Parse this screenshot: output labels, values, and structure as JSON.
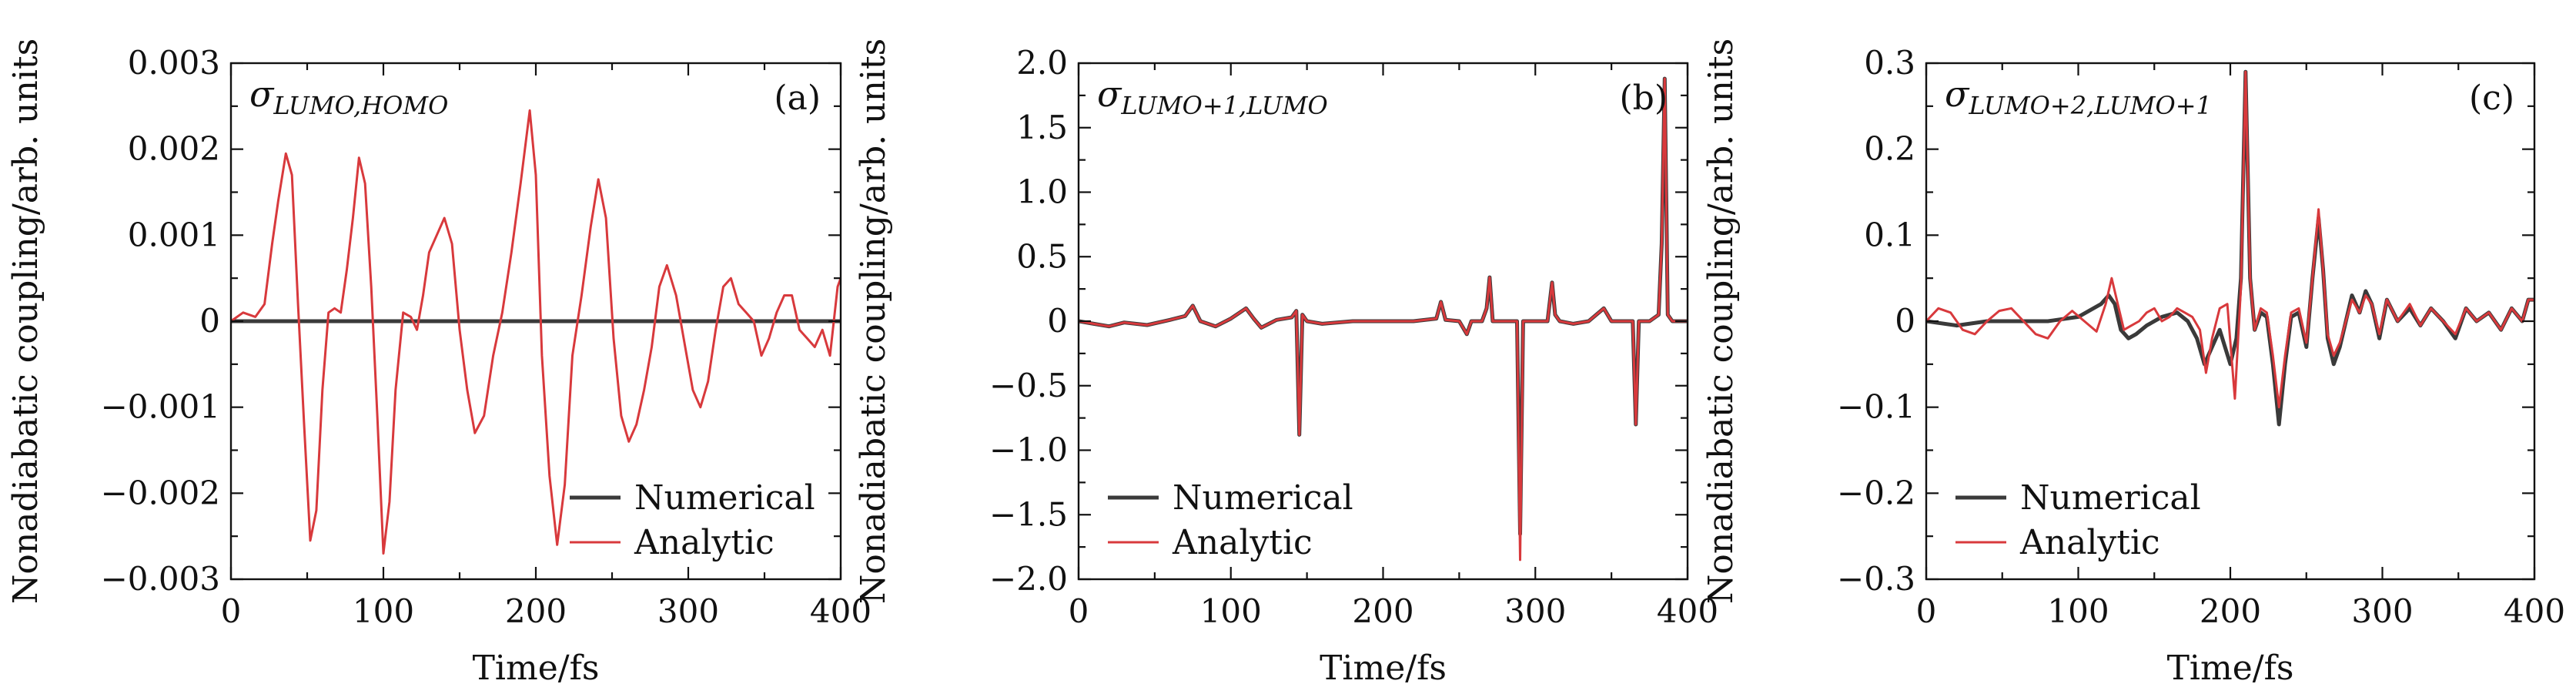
{
  "colors": {
    "numerical": "#3a3a3a",
    "analytic": "#d8393c",
    "axis": "#111111"
  },
  "chart_data": [
    {
      "type": "line",
      "panel_tag": "(a)",
      "label_main": "σ",
      "label_sub": "LUMO,HOMO",
      "xlabel": "Time/fs",
      "ylabel": "Nonadiabatic coupling/arb. units",
      "xlim": [
        0,
        400
      ],
      "ylim": [
        -0.003,
        0.003
      ],
      "x_ticks": [
        0,
        100,
        200,
        300,
        400
      ],
      "x_tick_labels": [
        "0",
        "100",
        "200",
        "300",
        "400"
      ],
      "y_ticks": [
        -0.003,
        -0.002,
        -0.001,
        0,
        0.001,
        0.002,
        0.003
      ],
      "y_tick_labels": [
        "−0.003",
        "−0.002",
        "−0.001",
        "0",
        "0.001",
        "0.002",
        "0.003"
      ],
      "legend": [
        "Numerical",
        "Analytic"
      ],
      "legend_position": "bottom-right",
      "series": [
        {
          "name": "Numerical",
          "x": [
            0,
            400
          ],
          "y": [
            0,
            0
          ]
        },
        {
          "name": "Analytic",
          "x": [
            0,
            8,
            16,
            22,
            27,
            31,
            36,
            40,
            44,
            48,
            52,
            56,
            60,
            64,
            68,
            72,
            76,
            80,
            84,
            88,
            92,
            96,
            100,
            104,
            108,
            113,
            118,
            122,
            126,
            130,
            135,
            140,
            145,
            150,
            155,
            160,
            166,
            172,
            178,
            184,
            190,
            196,
            200,
            204,
            209,
            214,
            219,
            224,
            230,
            236,
            241,
            246,
            251,
            256,
            261,
            266,
            271,
            276,
            281,
            286,
            292,
            298,
            303,
            308,
            313,
            318,
            323,
            328,
            333,
            338,
            343,
            348,
            353,
            358,
            363,
            368,
            373,
            378,
            383,
            388,
            393,
            398,
            400
          ],
          "y": [
            0,
            0.0001,
            5e-05,
            0.0002,
            0.0009,
            0.0014,
            0.00195,
            0.0017,
            0.0002,
            -0.0012,
            -0.00255,
            -0.0022,
            -0.0008,
            0.0001,
            0.00015,
            0.0001,
            0.0006,
            0.0012,
            0.0019,
            0.0016,
            0.0004,
            -0.0011,
            -0.0027,
            -0.0021,
            -0.0008,
            0.0001,
            5e-05,
            -0.0001,
            0.0003,
            0.0008,
            0.001,
            0.0012,
            0.0009,
            -0.0001,
            -0.0008,
            -0.0013,
            -0.0011,
            -0.0004,
            0.0001,
            0.0008,
            0.0016,
            0.00245,
            0.0017,
            -0.0004,
            -0.0018,
            -0.0026,
            -0.0019,
            -0.0004,
            0.0003,
            0.0011,
            0.00165,
            0.0012,
            -0.0002,
            -0.0011,
            -0.0014,
            -0.0012,
            -0.0008,
            -0.0003,
            0.0004,
            0.00065,
            0.0003,
            -0.0003,
            -0.0008,
            -0.001,
            -0.0007,
            -0.0001,
            0.0004,
            0.0005,
            0.0002,
            0.0001,
            0.0,
            -0.0004,
            -0.0002,
            0.0001,
            0.0003,
            0.0003,
            -0.0001,
            -0.0002,
            -0.0003,
            -0.0001,
            -0.0004,
            0.0004,
            0.0005
          ]
        }
      ]
    },
    {
      "type": "line",
      "panel_tag": "(b)",
      "label_main": "σ",
      "label_sub": "LUMO+1,LUMO",
      "xlabel": "Time/fs",
      "ylabel": "Nonadiabatic coupling/arb. units",
      "xlim": [
        0,
        400
      ],
      "ylim": [
        -2.0,
        2.0
      ],
      "x_ticks": [
        0,
        100,
        200,
        300,
        400
      ],
      "x_tick_labels": [
        "0",
        "100",
        "200",
        "300",
        "400"
      ],
      "y_ticks": [
        -2.0,
        -1.5,
        -1.0,
        -0.5,
        0,
        0.5,
        1.0,
        1.5,
        2.0
      ],
      "y_tick_labels": [
        "−2.0",
        "−1.5",
        "−1.0",
        "−0.5",
        "0",
        "0.5",
        "1.0",
        "1.5",
        "2.0"
      ],
      "legend": [
        "Numerical",
        "Analytic"
      ],
      "legend_position": "bottom-left",
      "series": [
        {
          "name": "Numerical",
          "x": [
            0,
            10,
            20,
            30,
            45,
            60,
            70,
            75,
            80,
            90,
            100,
            110,
            115,
            120,
            130,
            140,
            143,
            145,
            147,
            150,
            160,
            180,
            200,
            220,
            235,
            238,
            241,
            250,
            255,
            258,
            265,
            268,
            270,
            272,
            280,
            288,
            290,
            292,
            294,
            300,
            308,
            311,
            313,
            316,
            325,
            335,
            345,
            350,
            360,
            364,
            366,
            368,
            375,
            381,
            383,
            385,
            387,
            390,
            400
          ],
          "y": [
            0,
            -0.02,
            -0.04,
            -0.01,
            -0.03,
            0.01,
            0.04,
            0.12,
            0.0,
            -0.04,
            0.02,
            0.1,
            0.02,
            -0.05,
            0.01,
            0.03,
            0.08,
            -0.88,
            0.05,
            0.0,
            -0.02,
            0.0,
            0.0,
            0.0,
            0.02,
            0.15,
            0.01,
            0.0,
            -0.1,
            0.0,
            0.0,
            0.1,
            0.34,
            0.0,
            0.0,
            0.0,
            -1.65,
            0.0,
            0.0,
            0.0,
            0.0,
            0.3,
            0.05,
            0.0,
            -0.02,
            0.0,
            0.1,
            0.0,
            0.0,
            0.0,
            -0.8,
            0.0,
            0.0,
            0.05,
            0.6,
            1.88,
            0.05,
            0.0,
            0.0
          ]
        },
        {
          "name": "Analytic",
          "x": [
            0,
            10,
            20,
            30,
            45,
            60,
            70,
            75,
            80,
            90,
            100,
            110,
            115,
            120,
            130,
            140,
            143,
            145,
            147,
            150,
            160,
            180,
            200,
            220,
            235,
            238,
            241,
            250,
            255,
            258,
            265,
            268,
            270,
            272,
            280,
            288,
            290,
            292,
            294,
            300,
            308,
            311,
            313,
            316,
            325,
            335,
            345,
            350,
            360,
            364,
            366,
            368,
            375,
            381,
            383,
            385,
            387,
            390,
            400
          ],
          "y": [
            0,
            -0.02,
            -0.04,
            -0.01,
            -0.03,
            0.01,
            0.04,
            0.12,
            0.0,
            -0.04,
            0.02,
            0.1,
            0.02,
            -0.05,
            0.01,
            0.03,
            0.08,
            -0.88,
            0.05,
            0.0,
            -0.02,
            0.0,
            0.0,
            0.0,
            0.02,
            0.15,
            0.01,
            0.0,
            -0.1,
            0.0,
            0.0,
            0.1,
            0.34,
            0.0,
            0.0,
            0.0,
            -1.85,
            0.0,
            0.0,
            0.0,
            0.0,
            0.3,
            0.05,
            0.0,
            -0.02,
            0.0,
            0.1,
            0.0,
            0.0,
            0.0,
            -0.8,
            0.0,
            0.0,
            0.05,
            0.6,
            1.88,
            0.05,
            0.0,
            0.0
          ]
        }
      ]
    },
    {
      "type": "line",
      "panel_tag": "(c)",
      "label_main": "σ",
      "label_sub": "LUMO+2,LUMO+1",
      "xlabel": "Time/fs",
      "ylabel": "Nonadiabatic coupling/arb. units",
      "xlim": [
        0,
        400
      ],
      "ylim": [
        -0.3,
        0.3
      ],
      "x_ticks": [
        0,
        100,
        200,
        300,
        400
      ],
      "x_tick_labels": [
        "0",
        "100",
        "200",
        "300",
        "400"
      ],
      "y_ticks": [
        -0.3,
        -0.2,
        -0.1,
        0,
        0.1,
        0.2,
        0.3
      ],
      "y_tick_labels": [
        "−0.3",
        "−0.2",
        "−0.1",
        "0",
        "0.1",
        "0.2",
        "0.3"
      ],
      "legend": [
        "Numerical",
        "Analytic"
      ],
      "legend_position": "bottom-left",
      "series": [
        {
          "name": "Numerical",
          "x": [
            0,
            20,
            40,
            60,
            80,
            100,
            115,
            120,
            124,
            128,
            133,
            138,
            145,
            155,
            165,
            172,
            178,
            183,
            188,
            193,
            200,
            204,
            207,
            210,
            213,
            216,
            220,
            224,
            228,
            232,
            236,
            240,
            245,
            250,
            254,
            258,
            261,
            264,
            268,
            272,
            276,
            280,
            285,
            289,
            293,
            298,
            303,
            310,
            318,
            325,
            332,
            340,
            348,
            355,
            362,
            370,
            378,
            385,
            392,
            396,
            400
          ],
          "y": [
            0,
            -0.005,
            0.0,
            0.0,
            0.0,
            0.005,
            0.02,
            0.03,
            0.02,
            -0.01,
            -0.02,
            -0.015,
            -0.005,
            0.005,
            0.01,
            0.0,
            -0.02,
            -0.05,
            -0.03,
            -0.01,
            -0.05,
            -0.02,
            0.05,
            0.29,
            0.05,
            -0.01,
            0.01,
            0.005,
            -0.05,
            -0.12,
            -0.05,
            0.005,
            0.01,
            -0.03,
            0.05,
            0.12,
            0.06,
            -0.02,
            -0.05,
            -0.03,
            0.0,
            0.03,
            0.01,
            0.035,
            0.02,
            -0.02,
            0.025,
            0.0,
            0.015,
            -0.005,
            0.015,
            0.0,
            -0.02,
            0.015,
            0.0,
            0.01,
            -0.01,
            0.015,
            0.0,
            0.025,
            0.025
          ]
        },
        {
          "name": "Analytic",
          "x": [
            0,
            8,
            16,
            24,
            32,
            40,
            48,
            56,
            64,
            72,
            80,
            88,
            96,
            104,
            112,
            118,
            122,
            126,
            130,
            135,
            140,
            145,
            150,
            155,
            160,
            165,
            170,
            175,
            180,
            184,
            188,
            193,
            198,
            203,
            207,
            210,
            213,
            216,
            220,
            224,
            228,
            232,
            236,
            240,
            245,
            250,
            254,
            258,
            261,
            264,
            268,
            272,
            276,
            280,
            285,
            289,
            293,
            298,
            303,
            310,
            318,
            325,
            332,
            340,
            348,
            355,
            362,
            370,
            378,
            385,
            392,
            396,
            400
          ],
          "y": [
            0,
            0.015,
            0.01,
            -0.01,
            -0.015,
            0.0,
            0.012,
            0.015,
            0.0,
            -0.015,
            -0.02,
            0.0,
            0.012,
            0.0,
            -0.012,
            0.02,
            0.05,
            0.02,
            -0.01,
            -0.005,
            0.0,
            0.01,
            0.015,
            0.0,
            0.005,
            0.015,
            0.01,
            0.005,
            -0.01,
            -0.06,
            -0.02,
            0.015,
            0.02,
            -0.09,
            0.04,
            0.29,
            0.05,
            -0.01,
            0.015,
            0.01,
            -0.04,
            -0.1,
            -0.04,
            0.01,
            0.015,
            -0.025,
            0.05,
            0.13,
            0.06,
            -0.015,
            -0.04,
            -0.025,
            0.0,
            0.025,
            0.01,
            0.03,
            0.02,
            -0.015,
            0.025,
            0.0,
            0.02,
            -0.005,
            0.015,
            0.0,
            -0.015,
            0.015,
            0.0,
            0.01,
            -0.01,
            0.015,
            0.0,
            0.025,
            0.025
          ]
        }
      ]
    }
  ]
}
